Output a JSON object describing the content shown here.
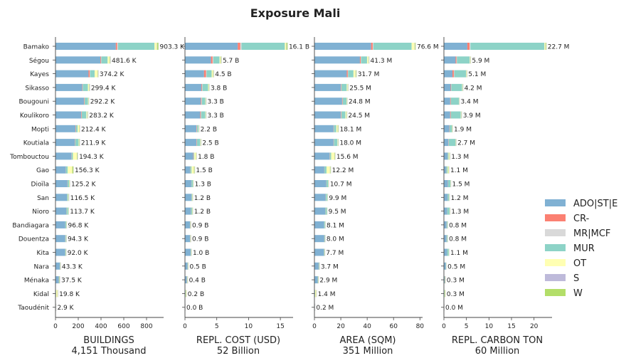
{
  "title": "Exposure Mali",
  "chart_data": {
    "type": "bar",
    "orientation": "horizontal",
    "stacked": true,
    "title": "Exposure Mali",
    "categories": [
      "Bamako",
      "Ségou",
      "Kayes",
      "Sikasso",
      "Bougouni",
      "Koulikoro",
      "Mopti",
      "Koutiala",
      "Tombouctou",
      "Gao",
      "Dioïla",
      "San",
      "Nioro",
      "Bandiagara",
      "Douentza",
      "Kita",
      "Nara",
      "Ménaka",
      "Kidal",
      "Taoudénit"
    ],
    "legend": {
      "position": "right",
      "items": [
        {
          "name": "ADO|ST|E",
          "color": "#80b1d3"
        },
        {
          "name": "CR-",
          "color": "#fb8072"
        },
        {
          "name": "MR|MCF",
          "color": "#d9d9d9"
        },
        {
          "name": "MUR",
          "color": "#8dd3c7"
        },
        {
          "name": "OT",
          "color": "#ffffb3"
        },
        {
          "name": "S",
          "color": "#bebada"
        },
        {
          "name": "W",
          "color": "#b3de69"
        }
      ]
    },
    "panels": [
      {
        "xlabel": "BUILDINGS",
        "subtitle": "4,151 Thousand",
        "xlim": [
          0,
          950
        ],
        "xticks": [
          0,
          200,
          400,
          600,
          800
        ],
        "tick_labels": [
          "0",
          "200",
          "400",
          "600",
          "800"
        ],
        "totals": [
          903.3,
          481.6,
          374.2,
          299.4,
          292.2,
          283.2,
          212.4,
          211.9,
          194.3,
          156.3,
          125.2,
          116.5,
          113.7,
          96.8,
          94.3,
          92.0,
          43.3,
          37.5,
          19.8,
          2.9
        ],
        "labels": [
          "903.3 K",
          "481.6 K",
          "374.2 K",
          "299.4 K",
          "292.2 K",
          "283.2 K",
          "212.4 K",
          "211.9 K",
          "194.3 K",
          "156.3 K",
          "125.2 K",
          "116.5 K",
          "113.7 K",
          "96.8 K",
          "94.3 K",
          "92.0 K",
          "43.3 K",
          "37.5 K",
          "19.8 K",
          "2.9 K"
        ],
        "series": [
          {
            "name": "ADO|ST|E",
            "values": [
              530,
              395,
              290,
              235,
              250,
              225,
              175,
              170,
              140,
              90,
              105,
              100,
              95,
              85,
              86,
              84,
              38,
              30,
              3,
              2.6
            ]
          },
          {
            "name": "CR-",
            "values": [
              12,
              5,
              10,
              3,
              4,
              4,
              3,
              2,
              2,
              1,
              1,
              1,
              1,
              0.5,
              0.5,
              0.5,
              0.5,
              0.5,
              0,
              0
            ]
          },
          {
            "name": "MR|MCF",
            "values": [
              8,
              3,
              4,
              2,
              2,
              2,
              2,
              1,
              1,
              1,
              0.5,
              0.5,
              0.5,
              0.3,
              0.3,
              0.3,
              0.3,
              0.3,
              0,
              0
            ]
          },
          {
            "name": "MUR",
            "values": [
              320,
              55,
              40,
              45,
              30,
              40,
              15,
              30,
              10,
              15,
              12,
              8,
              14,
              8,
              5,
              5,
              3,
              3,
              2,
              0.2
            ]
          },
          {
            "name": "OT",
            "values": [
              20,
              18,
              25,
              10,
              4,
              8,
              14,
              5,
              35,
              40,
              4,
              4,
              2,
              2,
              1.5,
              1.2,
              1.2,
              1,
              13,
              0.1
            ]
          },
          {
            "name": "S",
            "values": [
              3,
              2,
              2,
              2,
              1,
              2,
              1,
              1,
              2,
              1,
              1,
              1,
              0.5,
              0.5,
              0.5,
              0.5,
              0.2,
              0.2,
              0.3,
              0
            ]
          },
          {
            "name": "W",
            "values": [
              10.3,
              3.6,
              3.2,
              2.4,
              1.2,
              2.2,
              2.4,
              2.9,
              4.3,
              8.3,
              1.7,
              2,
              0.7,
              0.5,
              0.5,
              0.5,
              0.1,
              2.5,
              1.5,
              0
            ]
          }
        ]
      },
      {
        "xlabel": "REPL. COST (USD)",
        "subtitle": "52 Billion",
        "xlim": [
          0,
          17
        ],
        "xticks": [
          0,
          5,
          10,
          15
        ],
        "tick_labels": [
          "0",
          "5",
          "10",
          "15"
        ],
        "totals": [
          16.1,
          5.7,
          4.5,
          3.8,
          3.3,
          3.3,
          2.2,
          2.5,
          1.8,
          1.5,
          1.3,
          1.2,
          1.2,
          0.9,
          0.9,
          1.0,
          0.5,
          0.4,
          0.2,
          0.0
        ],
        "labels": [
          "16.1 B",
          "5.7 B",
          "4.5 B",
          "3.8 B",
          "3.3 B",
          "3.3 B",
          "2.2 B",
          "2.5 B",
          "1.8 B",
          "1.5 B",
          "1.3 B",
          "1.2 B",
          "1.2 B",
          "0.9 B",
          "0.9 B",
          "1.0 B",
          "0.5 B",
          "0.4 B",
          "0.2 B",
          "0.0 B"
        ],
        "series": [
          {
            "name": "ADO|ST|E",
            "values": [
              8.3,
              4.1,
              3.0,
              2.6,
              2.5,
              2.4,
              1.8,
              1.8,
              1.3,
              0.8,
              1.0,
              1.0,
              0.9,
              0.8,
              0.8,
              0.9,
              0.4,
              0.3,
              0.05,
              0
            ]
          },
          {
            "name": "CR-",
            "values": [
              0.4,
              0.25,
              0.3,
              0.1,
              0.1,
              0.1,
              0.05,
              0.05,
              0.05,
              0.02,
              0.02,
              0.02,
              0.02,
              0.01,
              0.01,
              0.01,
              0.01,
              0.01,
              0,
              0
            ]
          },
          {
            "name": "MR|MCF",
            "values": [
              0.2,
              0.1,
              0.1,
              0.05,
              0.05,
              0.05,
              0.05,
              0.03,
              0.03,
              0.02,
              0.02,
              0.02,
              0.02,
              0.01,
              0.01,
              0.01,
              0.01,
              0.01,
              0,
              0
            ]
          },
          {
            "name": "MUR",
            "values": [
              6.8,
              1.0,
              0.8,
              0.9,
              0.55,
              0.65,
              0.2,
              0.5,
              0.1,
              0.2,
              0.2,
              0.1,
              0.2,
              0.05,
              0.05,
              0.05,
              0.05,
              0.05,
              0.05,
              0
            ]
          },
          {
            "name": "OT",
            "values": [
              0.2,
              0.15,
              0.2,
              0.1,
              0.05,
              0.05,
              0.05,
              0.05,
              0.25,
              0.35,
              0.03,
              0.03,
              0.03,
              0.02,
              0.02,
              0.02,
              0.02,
              0.01,
              0.09,
              0
            ]
          },
          {
            "name": "S",
            "values": [
              0.05,
              0.03,
              0.03,
              0.02,
              0.02,
              0.02,
              0.01,
              0.02,
              0.02,
              0.02,
              0.01,
              0.01,
              0.01,
              0,
              0,
              0,
              0,
              0,
              0,
              0
            ]
          },
          {
            "name": "W",
            "values": [
              0.15,
              0.07,
              0.07,
              0.03,
              0.03,
              0.03,
              0.04,
              0.05,
              0.05,
              0.09,
              0.02,
              0.02,
              0.02,
              0.01,
              0.01,
              0.01,
              0.01,
              0.02,
              0.01,
              0
            ]
          }
        ]
      },
      {
        "xlabel": "AREA (SQM)",
        "subtitle": "351 Million",
        "xlim": [
          0,
          82
        ],
        "xticks": [
          0,
          20,
          40,
          60,
          80
        ],
        "tick_labels": [
          "0",
          "20",
          "40",
          "60",
          "80"
        ],
        "totals": [
          76.6,
          41.3,
          31.7,
          25.5,
          24.8,
          24.5,
          18.1,
          18.0,
          15.6,
          12.2,
          10.7,
          9.9,
          9.5,
          8.1,
          8.0,
          7.7,
          3.7,
          2.9,
          1.4,
          0.2
        ],
        "labels": [
          "76.6 M",
          "41.3 M",
          "31.7 M",
          "25.5 M",
          "24.8 M",
          "24.5 M",
          "18.1 M",
          "18.0 M",
          "15.6 M",
          "12.2 M",
          "10.7 M",
          "9.9 M",
          "9.5 M",
          "8.1 M",
          "8.0 M",
          "7.7 M",
          "3.7 M",
          "2.9 M",
          "1.4 M",
          "0.2 M"
        ],
        "series": [
          {
            "name": "ADO|ST|E",
            "values": [
              43,
              34.5,
              24.5,
              20,
              21,
              20,
              14.5,
              14.5,
              11.5,
              7.5,
              9,
              8.5,
              8.2,
              7.3,
              7.5,
              7.1,
              3.2,
              2.4,
              0.3,
              0.18
            ]
          },
          {
            "name": "CR-",
            "values": [
              1.2,
              0.6,
              0.8,
              0.3,
              0.3,
              0.3,
              0.2,
              0.2,
              0.1,
              0.1,
              0.05,
              0.05,
              0.05,
              0.05,
              0.05,
              0.05,
              0.03,
              0.03,
              0,
              0
            ]
          },
          {
            "name": "MR|MCF",
            "values": [
              0.5,
              0.3,
              0.3,
              0.2,
              0.2,
              0.2,
              0.1,
              0.1,
              0.1,
              0.05,
              0.05,
              0.05,
              0.05,
              0.03,
              0.03,
              0.03,
              0.02,
              0.02,
              0,
              0
            ]
          },
          {
            "name": "MUR",
            "values": [
              29,
              4.5,
              4,
              4,
              2.8,
              3,
              1.8,
              2.6,
              1,
              1.5,
              1.3,
              1,
              1.1,
              0.6,
              0.3,
              0.4,
              0.4,
              0.3,
              0.2,
              0.02
            ]
          },
          {
            "name": "OT",
            "values": [
              2.2,
              1,
              1.5,
              0.7,
              0.3,
              0.7,
              1,
              0.3,
              2.5,
              2.6,
              0.2,
              0.2,
              0.05,
              0.08,
              0.08,
              0.08,
              0.03,
              0.05,
              0.8,
              0
            ]
          },
          {
            "name": "S",
            "values": [
              0.3,
              0.2,
              0.2,
              0.1,
              0.1,
              0.1,
              0.1,
              0.1,
              0.1,
              0.1,
              0.05,
              0.05,
              0.02,
              0.02,
              0.02,
              0.02,
              0.01,
              0.01,
              0.02,
              0
            ]
          },
          {
            "name": "W",
            "values": [
              0.4,
              0.2,
              0.4,
              0.2,
              0.1,
              0.2,
              0.4,
              0.2,
              0.3,
              0.35,
              0.05,
              0.05,
              0.03,
              0.02,
              0.02,
              0.02,
              0.01,
              0.09,
              0.08,
              0
            ]
          }
        ]
      },
      {
        "xlabel": "REPL. CARBON TON",
        "subtitle": "60 Million",
        "xlim": [
          0,
          24
        ],
        "xticks": [
          0,
          5,
          10,
          15,
          20
        ],
        "tick_labels": [
          "0",
          "5",
          "10",
          "15",
          "20"
        ],
        "totals": [
          22.7,
          5.9,
          5.1,
          4.2,
          3.4,
          3.9,
          1.9,
          2.7,
          1.3,
          1.1,
          1.5,
          1.2,
          1.3,
          0.8,
          0.8,
          1.1,
          0.5,
          0.3,
          0.3,
          0.0
        ],
        "labels": [
          "22.7 M",
          "5.9 M",
          "5.1 M",
          "4.2 M",
          "3.4 M",
          "3.9 M",
          "1.9 M",
          "2.7 M",
          "1.3 M",
          "1.1 M",
          "1.5 M",
          "1.2 M",
          "1.3 M",
          "0.8 M",
          "0.8 M",
          "1.1 M",
          "0.5 M",
          "0.3 M",
          "0.3 M",
          "0.0 M"
        ],
        "series": [
          {
            "name": "ADO|ST|E",
            "values": [
              5.2,
              2.6,
              1.9,
              1.5,
              1.4,
              1.4,
              1.2,
              1.0,
              0.8,
              0.5,
              0.9,
              0.8,
              0.7,
              0.6,
              0.6,
              0.7,
              0.4,
              0.2,
              0.05,
              0
            ]
          },
          {
            "name": "CR-",
            "values": [
              0.5,
              0.2,
              0.3,
              0.1,
              0.1,
              0.1,
              0.05,
              0.05,
              0.02,
              0.02,
              0.02,
              0.02,
              0.02,
              0.01,
              0.01,
              0.01,
              0.01,
              0.01,
              0,
              0
            ]
          },
          {
            "name": "MR|MCF",
            "values": [
              0.2,
              0.1,
              0.1,
              0.05,
              0.05,
              0.05,
              0.03,
              0.03,
              0.02,
              0.02,
              0.02,
              0.02,
              0.02,
              0.01,
              0.01,
              0.01,
              0.01,
              0.01,
              0,
              0
            ]
          },
          {
            "name": "MUR",
            "values": [
              16.4,
              2.8,
              2.6,
              2.4,
              1.8,
              2.2,
              0.5,
              1.5,
              0.2,
              0.3,
              0.5,
              0.3,
              0.5,
              0.15,
              0.15,
              0.35,
              0.07,
              0.06,
              0.1,
              0
            ]
          },
          {
            "name": "OT",
            "values": [
              0.2,
              0.1,
              0.1,
              0.07,
              0.03,
              0.07,
              0.05,
              0.05,
              0.2,
              0.2,
              0.03,
              0.03,
              0.03,
              0.02,
              0.02,
              0.02,
              0.01,
              0.01,
              0.13,
              0
            ]
          },
          {
            "name": "S",
            "values": [
              0.05,
              0.03,
              0.03,
              0.02,
              0.01,
              0.02,
              0.01,
              0.02,
              0.01,
              0.01,
              0.01,
              0.01,
              0.01,
              0,
              0,
              0,
              0,
              0,
              0,
              0
            ]
          },
          {
            "name": "W",
            "values": [
              0.15,
              0.07,
              0.07,
              0.06,
              0.01,
              0.06,
              0.06,
              0.05,
              0.05,
              0.05,
              0.02,
              0.02,
              0.02,
              0.01,
              0.01,
              0.01,
              0,
              0.01,
              0.02,
              0
            ]
          }
        ]
      }
    ]
  }
}
